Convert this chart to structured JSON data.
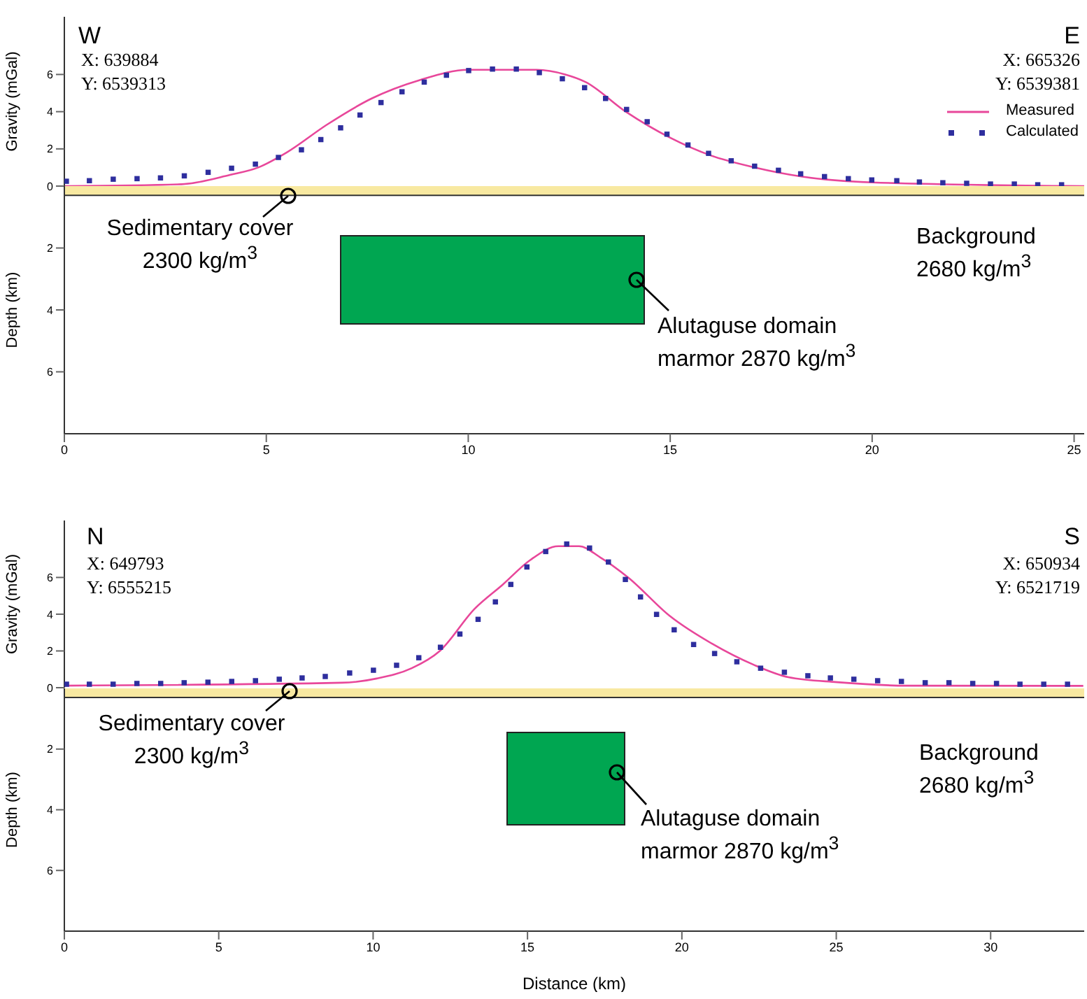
{
  "chart_data": [
    {
      "type": "line",
      "ylabel": "Gravity (mGal)",
      "xlim": [
        0,
        25.25
      ],
      "xticks": [
        0,
        5,
        10,
        15,
        20,
        25
      ],
      "ylim": [
        0,
        9.1
      ],
      "yticks": [
        0,
        2,
        4,
        6
      ],
      "tick_labels": "y",
      "legend": "right",
      "annotations": [
        "W",
        "X: 639884",
        "Y: 6539313",
        "E",
        "X: 665326",
        "Y: 6539381"
      ],
      "series": [
        {
          "name": "Measured",
          "color": "#e8479a",
          "x": [
            0,
            2.9,
            4.1,
            4.8,
            5.5,
            6.5,
            7.6,
            8.8,
            10.0,
            11.7,
            12.4,
            12.9,
            13.9,
            15.0,
            16.0,
            17.1,
            18.3,
            20.0,
            25.25
          ],
          "values": [
            0.0,
            0.1,
            0.6,
            1.0,
            1.8,
            3.3,
            4.7,
            5.7,
            6.25,
            6.25,
            6.0,
            5.6,
            4.0,
            2.6,
            1.65,
            1.0,
            0.5,
            0.2,
            0.0
          ]
        },
        {
          "name": "Calculated",
          "type": "scatter",
          "marker": "square",
          "color": "#2e2e9e",
          "x": [
            0.05,
            0.62,
            1.21,
            1.8,
            2.38,
            2.97,
            3.56,
            4.14,
            4.73,
            5.3,
            5.87,
            6.35,
            6.84,
            7.32,
            7.84,
            8.36,
            8.91,
            9.46,
            10.01,
            10.6,
            11.19,
            11.76,
            12.33,
            12.88,
            13.4,
            13.92,
            14.43,
            14.92,
            15.44,
            15.95,
            16.51,
            17.09,
            17.68,
            18.23,
            18.82,
            19.41,
            19.99,
            20.61,
            21.17,
            21.75,
            22.34,
            22.93,
            23.52,
            24.1,
            24.69
          ],
          "values": [
            0.26,
            0.29,
            0.37,
            0.4,
            0.44,
            0.55,
            0.74,
            0.96,
            1.18,
            1.54,
            1.95,
            2.5,
            3.13,
            3.82,
            4.49,
            5.07,
            5.59,
            5.96,
            6.21,
            6.29,
            6.29,
            6.1,
            5.77,
            5.29,
            4.71,
            4.12,
            3.46,
            2.79,
            2.21,
            1.76,
            1.36,
            1.07,
            0.85,
            0.66,
            0.51,
            0.4,
            0.33,
            0.29,
            0.22,
            0.18,
            0.15,
            0.11,
            0.11,
            0.07,
            0.07
          ]
        }
      ]
    },
    {
      "type": "area",
      "ylabel": "Depth (km)",
      "xlim": [
        0,
        25.25
      ],
      "xticks": [
        0,
        5,
        10,
        15,
        20,
        25
      ],
      "ylim": [
        8,
        0
      ],
      "yticks": [
        2,
        4,
        6
      ],
      "series": [
        {
          "color": "#f8e9a1",
          "x": [
            0,
            25.25
          ],
          "values": [
            0.3,
            0.3
          ]
        }
      ],
      "annotations": [
        "Sedimentary cover 2300 kg/m$^{3}$",
        "Alutaguse domain marmor 2870 kg/m$^{3}$",
        "Background 2680 kg/m$^{3}$"
      ]
    },
    {
      "type": "line",
      "ylabel": "Gravity (mGal)",
      "xlim": [
        0,
        33.03
      ],
      "xticks": [
        0,
        5,
        10,
        15,
        20,
        25,
        30
      ],
      "ylim": [
        0,
        9.1
      ],
      "yticks": [
        0,
        2,
        4,
        6
      ],
      "tick_labels": "y",
      "annotations": [
        "N",
        "X: 649793",
        "Y: 6555215",
        "S",
        "X: 650934",
        "Y: 6521719"
      ],
      "series": [
        {
          "color": "#e8479a",
          "x": [
            0,
            8.99,
            10.12,
            11.25,
            12.16,
            13.29,
            14.19,
            15.09,
            16.0,
            16.67,
            17.35,
            18.26,
            19.61,
            20.97,
            22.32,
            23.45,
            25.03,
            27.29,
            33.0
          ],
          "values": [
            0.11,
            0.27,
            0.5,
            1.06,
            2.0,
            4.3,
            5.6,
            6.95,
            7.7,
            7.7,
            7.1,
            6.0,
            3.9,
            2.4,
            1.25,
            0.57,
            0.3,
            0.11,
            0.1
          ]
        },
        {
          "type": "scatter",
          "marker": "square",
          "color": "#2e2e9e",
          "x": [
            0.07,
            0.81,
            1.58,
            2.35,
            3.12,
            3.88,
            4.65,
            5.42,
            6.19,
            6.96,
            7.7,
            8.45,
            9.24,
            10.01,
            10.76,
            11.48,
            12.18,
            12.81,
            13.4,
            13.96,
            14.46,
            14.98,
            15.59,
            16.27,
            17.01,
            17.62,
            18.17,
            18.66,
            19.18,
            19.75,
            20.38,
            21.06,
            21.78,
            22.55,
            23.32,
            24.08,
            24.81,
            25.57,
            26.34,
            27.11,
            27.88,
            28.65,
            29.42,
            30.19,
            30.95,
            31.72,
            32.49
          ],
          "values": [
            0.19,
            0.19,
            0.19,
            0.23,
            0.23,
            0.27,
            0.3,
            0.34,
            0.38,
            0.46,
            0.53,
            0.61,
            0.8,
            0.95,
            1.22,
            1.63,
            2.2,
            2.92,
            3.72,
            4.67,
            5.62,
            6.57,
            7.41,
            7.82,
            7.6,
            6.84,
            5.89,
            4.94,
            3.99,
            3.15,
            2.35,
            1.86,
            1.41,
            1.06,
            0.84,
            0.65,
            0.53,
            0.46,
            0.38,
            0.34,
            0.27,
            0.27,
            0.23,
            0.23,
            0.19,
            0.19,
            0.19
          ]
        }
      ]
    },
    {
      "type": "area",
      "xlabel": "Distance (km)",
      "ylabel": "Depth (km)",
      "xlim": [
        0,
        33.03
      ],
      "xticks": [
        0,
        5,
        10,
        15,
        20,
        25,
        30
      ],
      "ylim": [
        8,
        0
      ],
      "yticks": [
        2,
        4,
        6
      ],
      "series": [
        {
          "color": "#f8e9a1",
          "x": [
            0,
            33.03
          ],
          "values": [
            0.3,
            0.3
          ]
        }
      ],
      "annotations": [
        "Sedimentary cover 2300 kg/m$^{3}$",
        "Alutaguse domain marmor 2870 kg/m$^{3}$",
        "Background 2680 kg/m$^{3}$"
      ]
    }
  ]
}
